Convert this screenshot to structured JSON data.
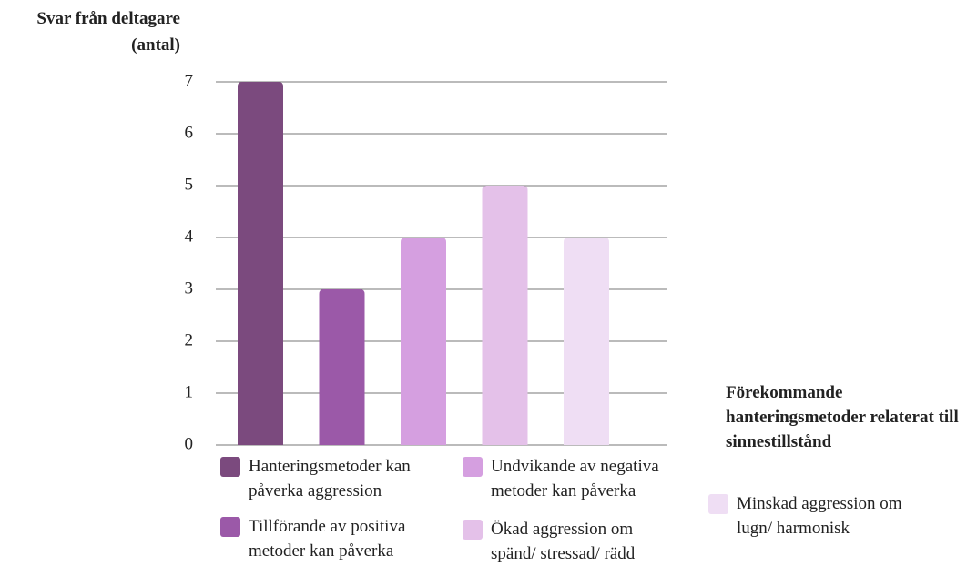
{
  "chart_data": {
    "type": "bar",
    "y_label": "Svar från deltagare (antal)",
    "x_label": "Förekommande hanteringsmetoder relaterat till sinnestillstånd",
    "categories": [
      null
    ],
    "series": [
      {
        "name": "Hanteringsmetoder kan påverka aggression",
        "color": "#7b4a7e",
        "values": [
          7
        ]
      },
      {
        "name": "Tillförande av positiva metoder kan påverka",
        "color": "#9b59a8",
        "values": [
          3
        ]
      },
      {
        "name": "Undvikande av negativa metoder kan påverka",
        "color": "#d59fe0",
        "values": [
          4
        ]
      },
      {
        "name": "Ökad aggression om spänd/ stressad/ rädd",
        "color": "#e4c1e9",
        "values": [
          5
        ]
      },
      {
        "name": "Minskad aggression om lugn/ harmonisk",
        "color": "#efdef4",
        "values": [
          4
        ]
      }
    ],
    "ylim": [
      0,
      7
    ],
    "yticks": [
      0,
      1,
      2,
      3,
      4,
      5,
      6,
      7
    ],
    "grid": true
  }
}
